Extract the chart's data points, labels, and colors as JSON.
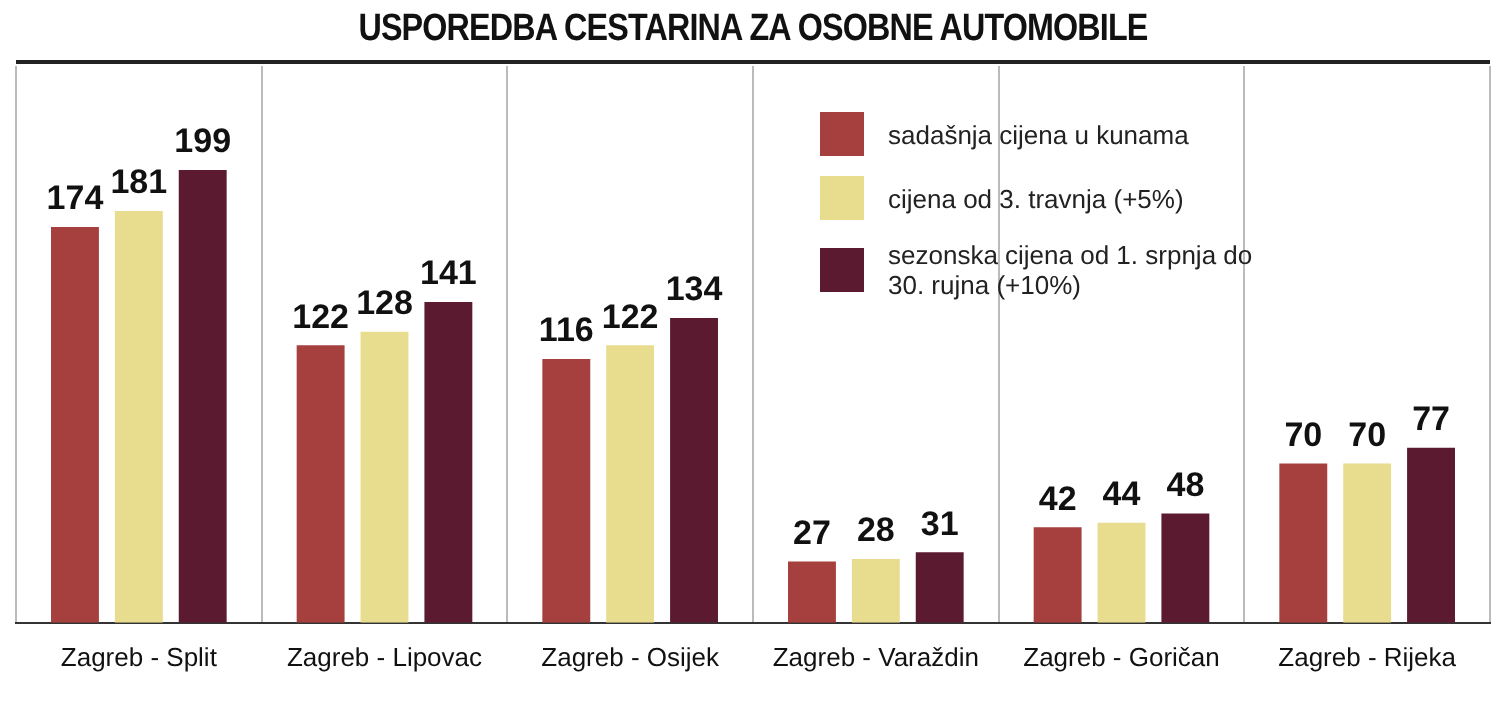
{
  "chart_data": {
    "type": "bar",
    "title": "USPOREDBA CESTARINA ZA OSOBNE AUTOMOBILE",
    "categories": [
      "Zagreb - Split",
      "Zagreb - Lipovac",
      "Zagreb - Osijek",
      "Zagreb - Varaždin",
      "Zagreb - Goričan",
      "Zagreb - Rijeka"
    ],
    "series": [
      {
        "name": "sadašnja cijena u kunama",
        "color": "#a5403f",
        "values": [
          174,
          122,
          116,
          27,
          42,
          70
        ]
      },
      {
        "name": "cijena od 3. travnja (+5%)",
        "color": "#e8dc8e",
        "values": [
          181,
          128,
          122,
          28,
          44,
          70
        ]
      },
      {
        "name": "sezonska cijena od 1. srpnja do 30. rujna (+10%)",
        "color": "#5b1a30",
        "values": [
          199,
          141,
          134,
          31,
          48,
          77
        ]
      }
    ],
    "data_labels": true,
    "grid": "x",
    "legend": "top right"
  }
}
